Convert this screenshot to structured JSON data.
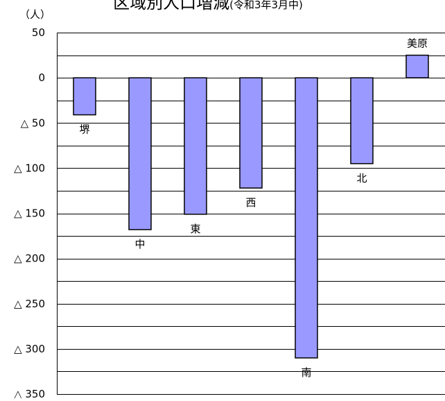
{
  "chart_data": {
    "type": "bar",
    "title": "区域別人口増減",
    "subtitle": "(令和3年3月中)",
    "ylabel": "（人）",
    "xlabel": "",
    "categories": [
      "堺",
      "中",
      "東",
      "西",
      "南",
      "北",
      "美原"
    ],
    "values": [
      -41,
      -168,
      -151,
      -122,
      -310,
      -95,
      25
    ],
    "ylim": [
      -350,
      50
    ],
    "y_ticks": [
      50,
      0,
      -50,
      -100,
      -150,
      -200,
      -250,
      -300,
      -350
    ],
    "y_tick_labels": [
      "50",
      "0",
      "△ 50",
      "△ 100",
      "△ 150",
      "△ 200",
      "△ 250",
      "△ 300",
      "△ 350"
    ],
    "grid": true,
    "minor_grid_step": 25,
    "legend": "none",
    "colors": {
      "bar_fill": "#9999ff",
      "bar_stroke": "#000000",
      "grid": "#000000"
    }
  }
}
